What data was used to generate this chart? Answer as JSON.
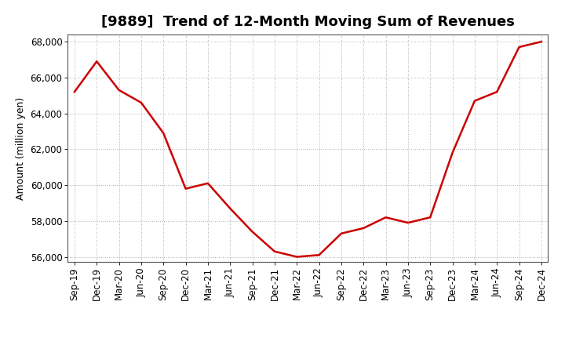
{
  "title": "[9889]  Trend of 12-Month Moving Sum of Revenues",
  "ylabel": "Amount (million yen)",
  "line_color": "#cc0000",
  "background_color": "#ffffff",
  "grid_color": "#999999",
  "x_labels": [
    "Sep-19",
    "Dec-19",
    "Mar-20",
    "Jun-20",
    "Sep-20",
    "Dec-20",
    "Mar-21",
    "Jun-21",
    "Sep-21",
    "Dec-21",
    "Mar-22",
    "Jun-22",
    "Sep-22",
    "Dec-22",
    "Mar-23",
    "Jun-23",
    "Sep-23",
    "Dec-23",
    "Mar-24",
    "Jun-24",
    "Sep-24",
    "Dec-24"
  ],
  "values": [
    65200,
    66900,
    65300,
    64600,
    62900,
    59800,
    60100,
    58700,
    57400,
    56300,
    56000,
    56100,
    57300,
    57600,
    58200,
    57900,
    58200,
    61800,
    64700,
    65200,
    67700,
    68000
  ],
  "ylim": [
    55700,
    68400
  ],
  "yticks": [
    56000,
    58000,
    60000,
    62000,
    64000,
    66000,
    68000
  ],
  "linewidth": 1.8,
  "title_fontsize": 13,
  "tick_fontsize": 8.5,
  "ylabel_fontsize": 9
}
